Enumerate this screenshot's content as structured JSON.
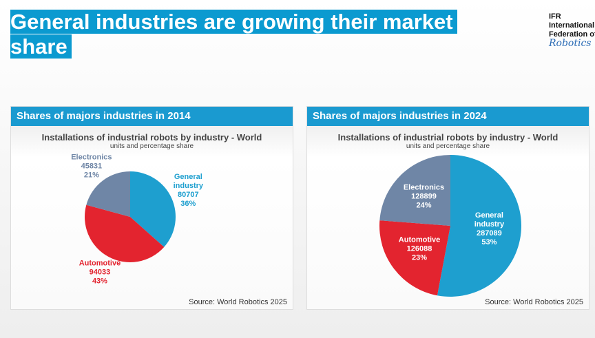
{
  "header": {
    "title": "General industries are growing their market share"
  },
  "logo": {
    "lines": [
      "IFR",
      "International",
      "Federation of",
      "Robotics"
    ]
  },
  "chart_data": [
    {
      "type": "pie",
      "title": "Shares of majors industries in 2014",
      "subtitle": "Installations of industrial robots by industry - World",
      "units_note": "units and percentage share",
      "source": "Source: World Robotics 2025",
      "categories": [
        "General industry",
        "Automotive",
        "Electronics"
      ],
      "values": [
        80707,
        94033,
        45831
      ],
      "percentages": [
        {
          "value": 36,
          "label": "36%"
        },
        {
          "value": 43,
          "label": "43%"
        },
        {
          "value": 21,
          "label": "21%"
        }
      ],
      "colors": [
        "#1e9fcf",
        "#e3242f",
        "#6f86a6"
      ],
      "labels": "outside"
    },
    {
      "type": "pie",
      "title": "Shares of majors industries in 2024",
      "subtitle": "Installations of industrial robots by industry - World",
      "units_note": "units and percentage share",
      "source": "Source: World Robotics 2025",
      "categories": [
        "General industry",
        "Automotive",
        "Electronics"
      ],
      "values": [
        287089,
        126088,
        128899
      ],
      "percentages": [
        {
          "value": 53,
          "label": "53%"
        },
        {
          "value": 23,
          "label": "23%"
        },
        {
          "value": 24,
          "label": "24%"
        }
      ],
      "colors": [
        "#1e9fcf",
        "#e3242f",
        "#6f86a6"
      ],
      "labels": "inside"
    }
  ]
}
